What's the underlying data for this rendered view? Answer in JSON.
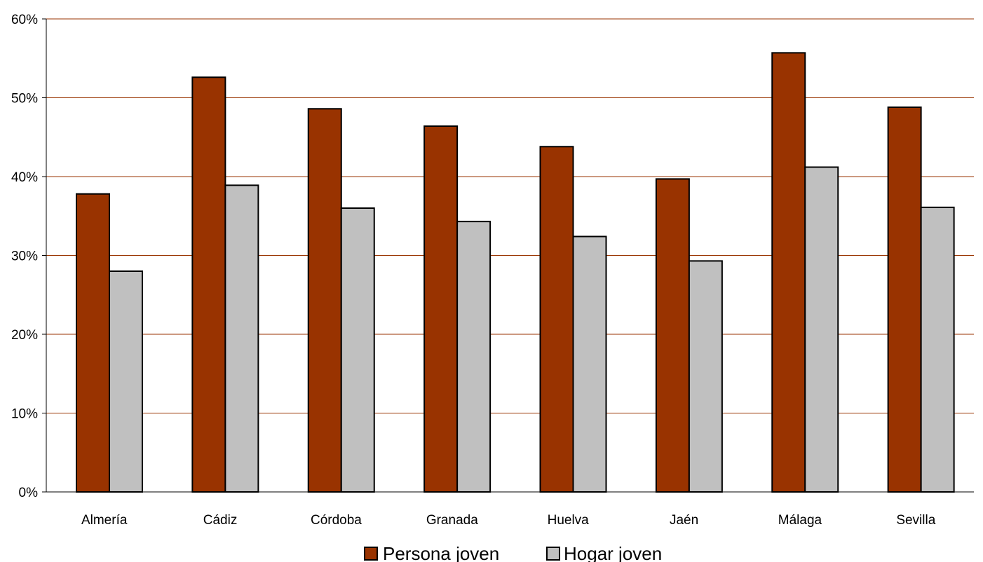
{
  "chart_data": {
    "type": "bar",
    "categories": [
      "Almería",
      "Cádiz",
      "Córdoba",
      "Granada",
      "Huelva",
      "Jaén",
      "Málaga",
      "Sevilla"
    ],
    "series": [
      {
        "name": "Persona joven",
        "color": "#993300",
        "values": [
          37.8,
          52.6,
          48.6,
          46.4,
          43.8,
          39.7,
          55.7,
          48.8
        ]
      },
      {
        "name": "Hogar joven",
        "color": "#c0c0c0",
        "values": [
          28.0,
          38.9,
          36.0,
          34.3,
          32.4,
          29.3,
          41.2,
          36.1
        ]
      }
    ],
    "ylim": [
      0,
      60
    ],
    "yticks": [
      "0%",
      "10%",
      "20%",
      "30%",
      "40%",
      "50%",
      "60%"
    ],
    "gridline_color": "#993300",
    "grid": true,
    "legend_position": "bottom",
    "title": "",
    "xlabel": "",
    "ylabel": ""
  }
}
